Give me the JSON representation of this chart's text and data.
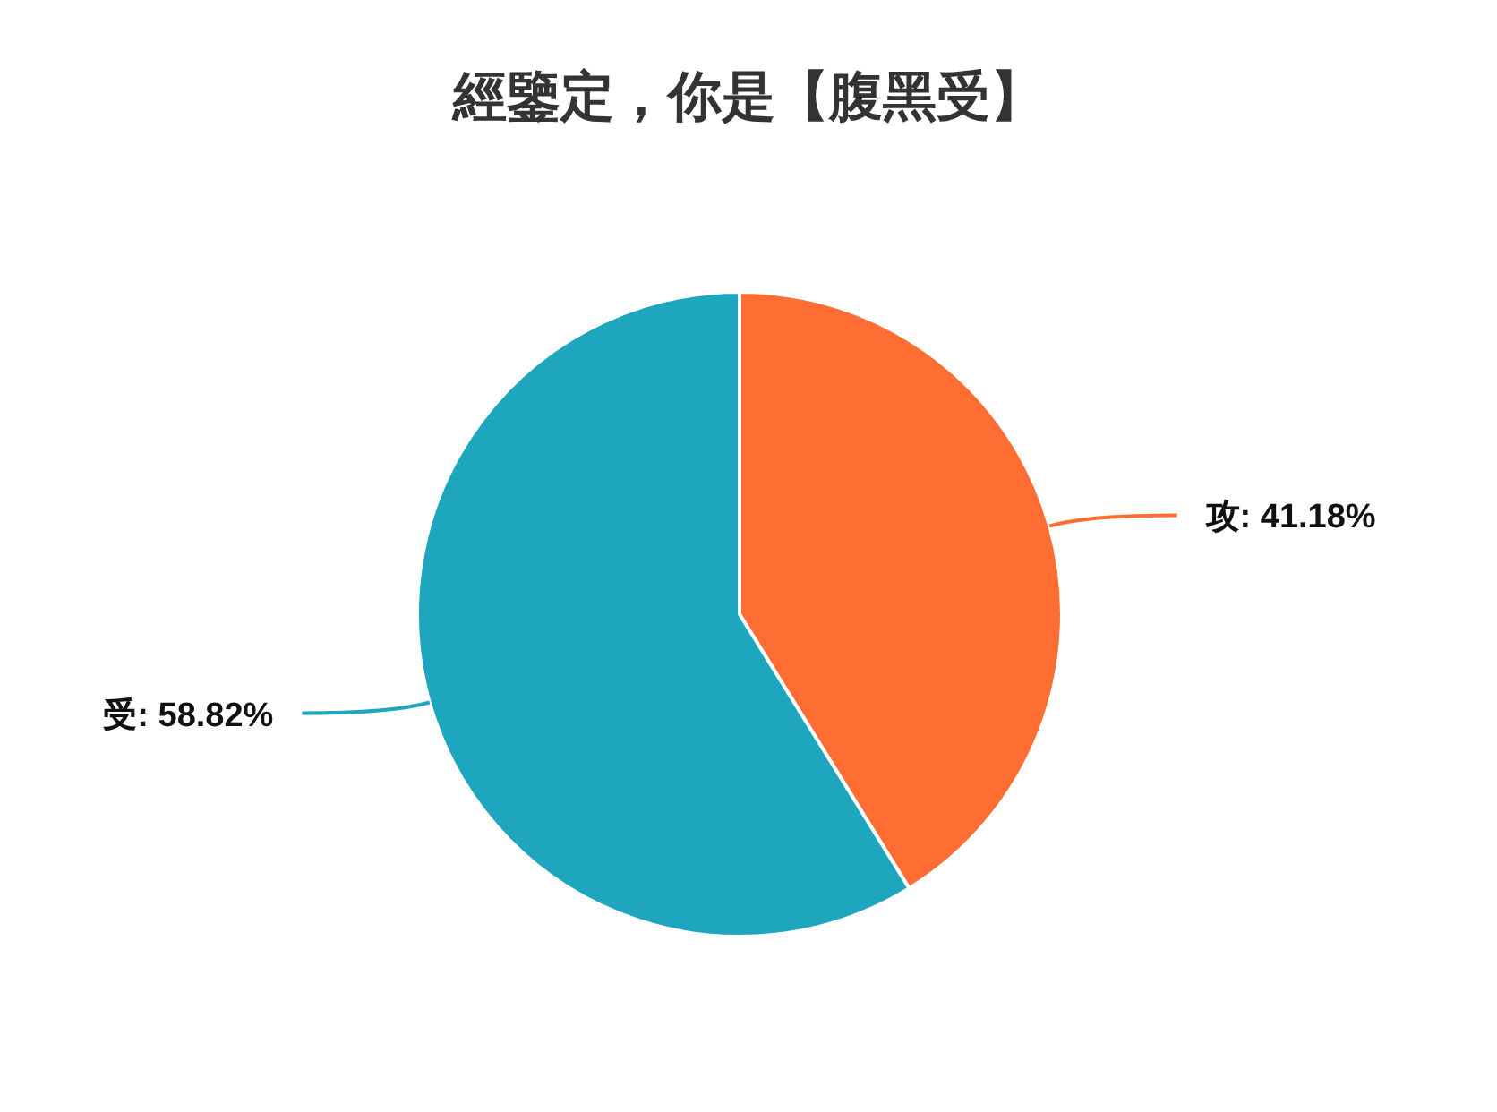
{
  "chart_data": {
    "type": "pie",
    "title": "經鑒定，你是【腹黑受】",
    "categories": [
      "攻",
      "受"
    ],
    "values": [
      41.18,
      58.82
    ],
    "colors": [
      "#fe6e32",
      "#1da6bd"
    ],
    "value_labels": [
      ": 41.18%",
      ": 58.82%"
    ],
    "legend": false
  }
}
